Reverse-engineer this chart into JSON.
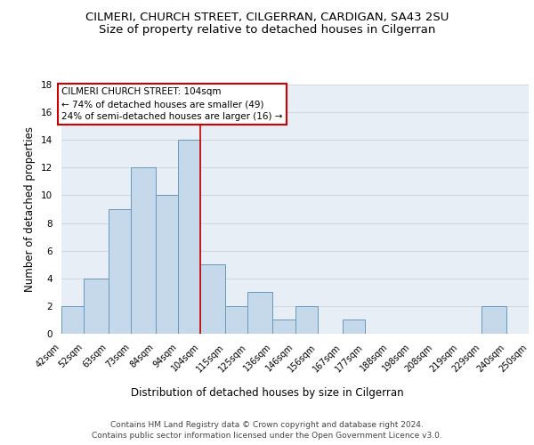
{
  "title": "CILMERI, CHURCH STREET, CILGERRAN, CARDIGAN, SA43 2SU",
  "subtitle": "Size of property relative to detached houses in Cilgerran",
  "xlabel": "Distribution of detached houses by size in Cilgerran",
  "ylabel": "Number of detached properties",
  "bar_edges": [
    42,
    52,
    63,
    73,
    84,
    94,
    104,
    115,
    125,
    136,
    146,
    156,
    167,
    177,
    188,
    198,
    208,
    219,
    229,
    240,
    250
  ],
  "bar_heights": [
    2,
    4,
    9,
    12,
    10,
    14,
    5,
    2,
    3,
    1,
    2,
    0,
    1,
    0,
    0,
    0,
    0,
    0,
    2,
    0
  ],
  "bar_color": "#c6d9ea",
  "bar_edge_color": "#6699bb",
  "bar_edge_width": 0.7,
  "red_line_x": 104,
  "ylim": [
    0,
    18
  ],
  "yticks": [
    0,
    2,
    4,
    6,
    8,
    10,
    12,
    14,
    16,
    18
  ],
  "grid_color": "#d0d8e0",
  "background_color": "#e8eef6",
  "annotation_text": "CILMERI CHURCH STREET: 104sqm\n← 74% of detached houses are smaller (49)\n24% of semi-detached houses are larger (16) →",
  "footer_line1": "Contains HM Land Registry data © Crown copyright and database right 2024.",
  "footer_line2": "Contains public sector information licensed under the Open Government Licence v3.0.",
  "title_fontsize": 9.5,
  "subtitle_fontsize": 9.5,
  "tick_label_fontsize": 7,
  "ylabel_fontsize": 8.5,
  "xlabel_fontsize": 8.5,
  "annotation_fontsize": 7.5,
  "footer_fontsize": 6.5
}
